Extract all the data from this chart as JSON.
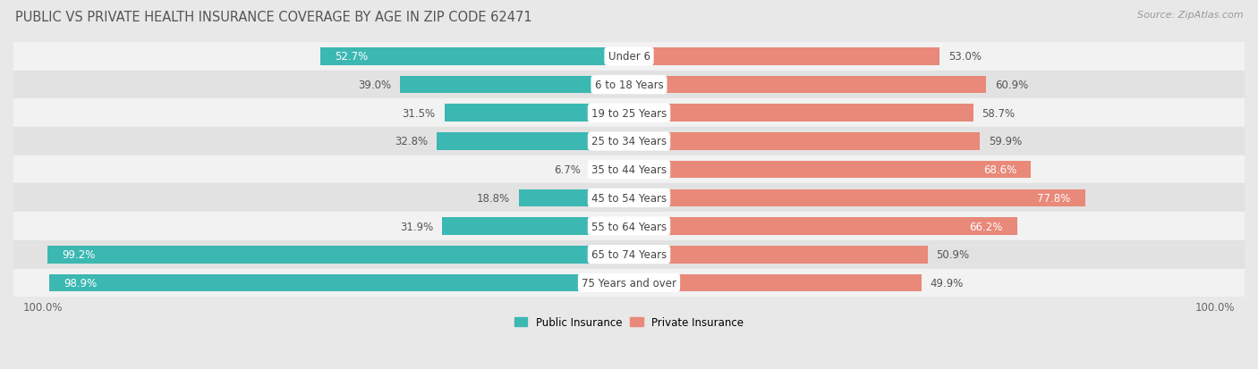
{
  "title": "PUBLIC VS PRIVATE HEALTH INSURANCE COVERAGE BY AGE IN ZIP CODE 62471",
  "source": "Source: ZipAtlas.com",
  "categories": [
    "Under 6",
    "6 to 18 Years",
    "19 to 25 Years",
    "25 to 34 Years",
    "35 to 44 Years",
    "45 to 54 Years",
    "55 to 64 Years",
    "65 to 74 Years",
    "75 Years and over"
  ],
  "public_values": [
    52.7,
    39.0,
    31.5,
    32.8,
    6.7,
    18.8,
    31.9,
    99.2,
    98.9
  ],
  "private_values": [
    53.0,
    60.9,
    58.7,
    59.9,
    68.6,
    77.8,
    66.2,
    50.9,
    49.9
  ],
  "public_color": "#3cb8b2",
  "private_color": "#e8897a",
  "public_label": "Public Insurance",
  "private_label": "Private Insurance",
  "bg_color": "#e8e8e8",
  "row_bg_light": "#f2f2f2",
  "row_bg_dark": "#e2e2e2",
  "max_value": 100.0,
  "title_fontsize": 10.5,
  "label_fontsize": 8.5,
  "tick_fontsize": 8.5,
  "source_fontsize": 8.0,
  "bar_height": 0.62,
  "xlim_left": -105,
  "xlim_right": 105
}
